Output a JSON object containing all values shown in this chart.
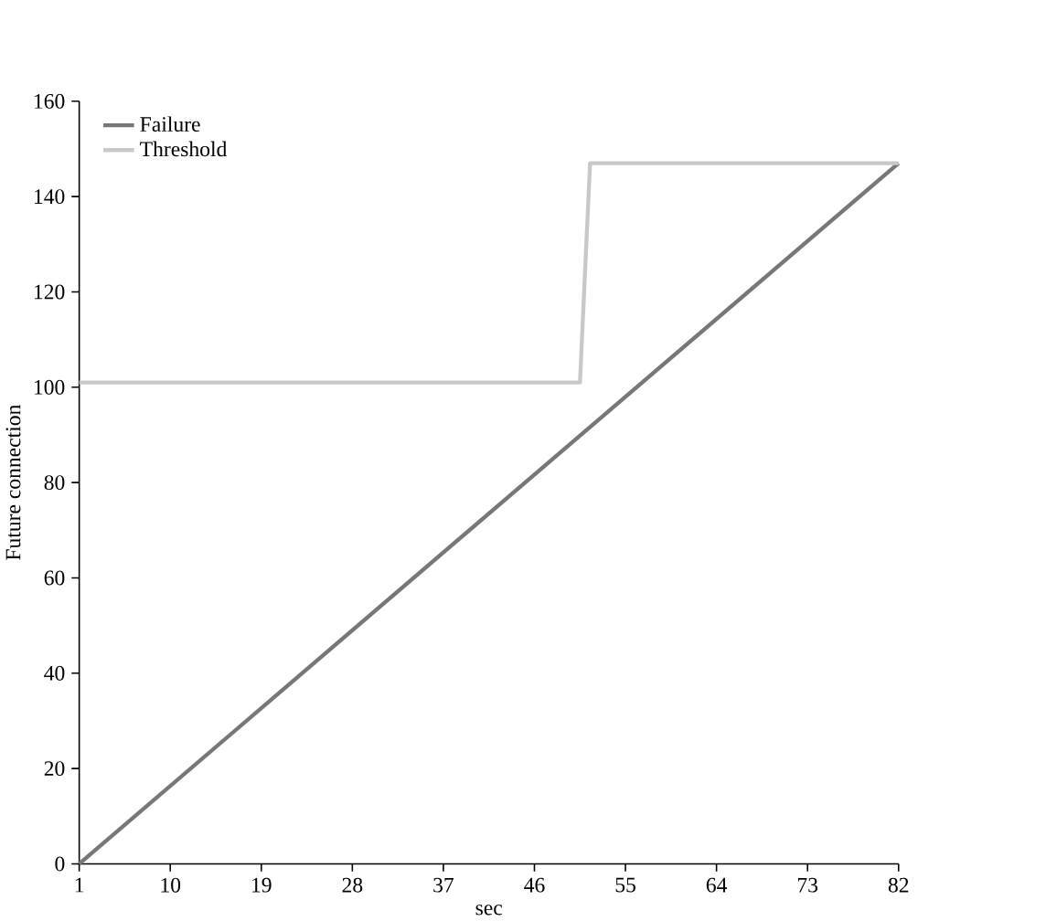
{
  "chart_data": {
    "type": "line",
    "xlabel": "sec",
    "ylabel": "Future connection",
    "xlim": [
      1,
      82
    ],
    "xticks": [
      1,
      10,
      19,
      28,
      37,
      46,
      55,
      64,
      73,
      82
    ],
    "ylim": [
      0,
      160
    ],
    "yticks": [
      0,
      20,
      40,
      60,
      80,
      100,
      120,
      140,
      160
    ],
    "series": [
      {
        "name": "Failure",
        "color": "#777777",
        "x": [
          1,
          82
        ],
        "values": [
          0,
          147
        ]
      },
      {
        "name": "Threshold",
        "color": "#c8c8c8",
        "x": [
          1,
          50.5,
          51.5,
          82
        ],
        "values": [
          101,
          101,
          147,
          147
        ]
      }
    ],
    "legend": "top left",
    "grid": false,
    "marker": "none",
    "line_style": "solid"
  }
}
